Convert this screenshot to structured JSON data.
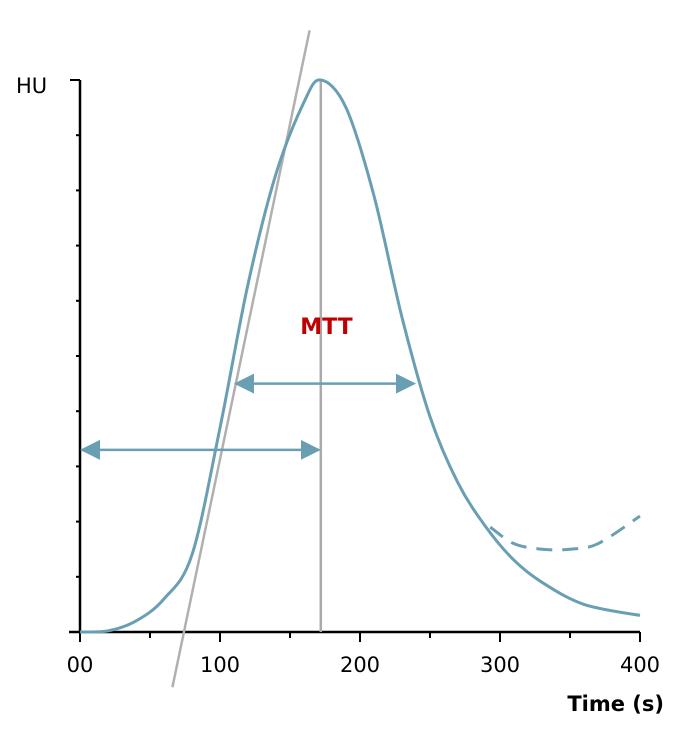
{
  "chart_data": {
    "type": "line",
    "title": "",
    "ylabel": "HU",
    "xlabel": "Time (s)",
    "x_ticks": [
      "00",
      "100",
      "200",
      "300",
      "400"
    ],
    "xlim": [
      0,
      400
    ],
    "ylim": [
      0,
      1
    ],
    "y_ticks_labeled": false,
    "grid": false,
    "legend": "none",
    "series": [
      {
        "style": "solid",
        "color": "#6a9fb3",
        "x": [
          0,
          20,
          40,
          60,
          80,
          100,
          120,
          140,
          160,
          172,
          190,
          210,
          230,
          250,
          270,
          290,
          310,
          330,
          360,
          400
        ],
        "y": [
          0,
          0.002,
          0.02,
          0.06,
          0.14,
          0.37,
          0.63,
          0.83,
          0.96,
          1.0,
          0.95,
          0.79,
          0.57,
          0.39,
          0.27,
          0.19,
          0.13,
          0.09,
          0.05,
          0.03
        ]
      },
      {
        "style": "dashed",
        "color": "#6a9fb3",
        "x": [
          293,
          310,
          330,
          350,
          370,
          400
        ],
        "y": [
          0.19,
          0.16,
          0.15,
          0.15,
          0.16,
          0.21
        ]
      }
    ],
    "tangent_line": {
      "color": "#b0b0b0",
      "x": [
        66,
        164
      ],
      "y": [
        -0.1,
        1.09
      ]
    },
    "peak_line": {
      "color": "#aaaaaa",
      "x": 172
    },
    "arrows": [
      {
        "x_start": 0,
        "x_end": 172,
        "y": 0.33
      },
      {
        "x_start": 110,
        "x_end": 240,
        "y": 0.45
      }
    ],
    "annotations": [
      {
        "text": "MTT",
        "x": 176,
        "y": 0.54,
        "color": "#c00000"
      }
    ]
  }
}
